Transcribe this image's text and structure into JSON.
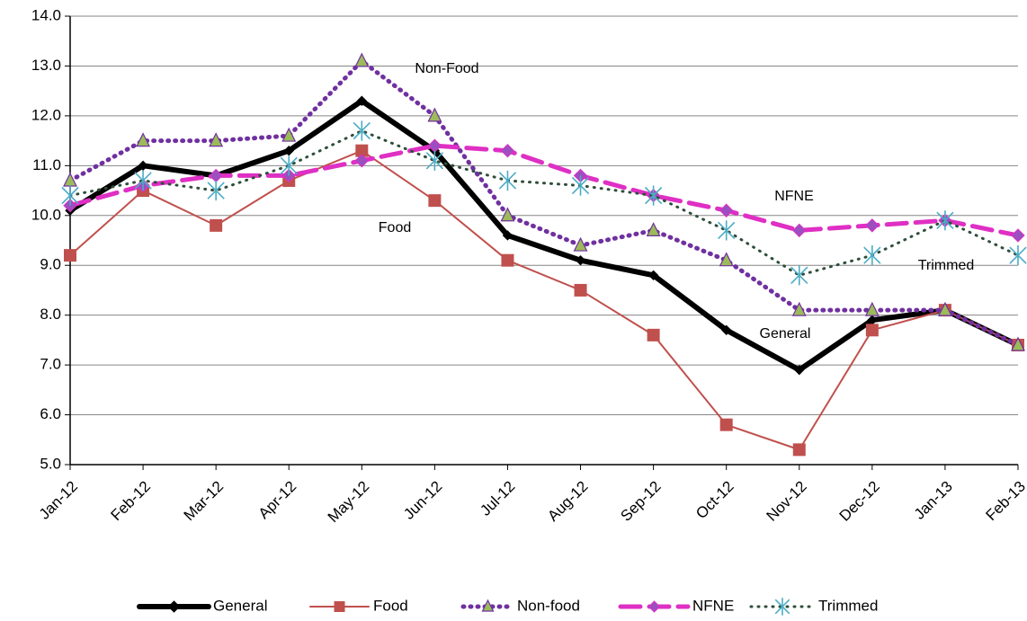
{
  "chart_data": {
    "type": "line",
    "categories": [
      "Jan-12",
      "Feb-12",
      "Mar-12",
      "Apr-12",
      "May-12",
      "Jun-12",
      "Jul-12",
      "Aug-12",
      "Sep-12",
      "Oct-12",
      "Nov-12",
      "Dec-12",
      "Jan-13",
      "Feb-13"
    ],
    "series": [
      {
        "name": "General",
        "color": "#000000",
        "marker": "diamond",
        "marker_color": "#000000",
        "dash": "solid",
        "width": 6,
        "values": [
          10.1,
          11.0,
          10.8,
          11.3,
          12.3,
          11.3,
          9.6,
          9.1,
          8.8,
          7.7,
          6.9,
          7.9,
          8.1,
          7.4
        ]
      },
      {
        "name": "Food",
        "color": "#c0504d",
        "marker": "square",
        "marker_color": "#c0504d",
        "dash": "solid",
        "width": 2,
        "values": [
          9.2,
          10.5,
          9.8,
          10.7,
          11.3,
          10.3,
          9.1,
          8.5,
          7.6,
          5.8,
          5.3,
          7.7,
          8.1,
          7.4
        ]
      },
      {
        "name": "Non-food",
        "color": "#7030a0",
        "marker": "triangle",
        "marker_color": "#9bbb59",
        "dash": "dotted",
        "width": 5,
        "values": [
          10.7,
          11.5,
          11.5,
          11.6,
          13.1,
          12.0,
          10.0,
          9.4,
          9.7,
          9.1,
          8.1,
          8.1,
          8.1,
          7.4
        ]
      },
      {
        "name": "NFNE",
        "color": "#df2fc4",
        "marker": "diamond",
        "marker_color": "#9b4fc0",
        "dash": "dashed",
        "width": 5,
        "values": [
          10.2,
          10.6,
          10.8,
          10.8,
          11.1,
          11.4,
          11.3,
          10.8,
          10.4,
          10.1,
          9.7,
          9.8,
          9.9,
          9.6
        ]
      },
      {
        "name": "Trimmed",
        "color": "#2e4e3a",
        "marker": "asterisk",
        "marker_color": "#4bacc6",
        "dash": "dotted",
        "width": 3,
        "values": [
          10.4,
          10.7,
          10.5,
          11.0,
          11.7,
          11.1,
          10.7,
          10.6,
          10.4,
          9.7,
          8.8,
          9.2,
          9.9,
          9.2
        ]
      }
    ],
    "annotations": [
      "Non-Food",
      "Food",
      "NFNE",
      "Trimmed",
      "General"
    ],
    "ylim": [
      5,
      14
    ],
    "yticks": [
      {
        "value": 5,
        "label": "5.0"
      },
      {
        "value": 6,
        "label": "6.0"
      },
      {
        "value": 7,
        "label": "7.0"
      },
      {
        "value": 8,
        "label": "8.0"
      },
      {
        "value": 9,
        "label": "9.0"
      },
      {
        "value": 10,
        "label": "10.0"
      },
      {
        "value": 11,
        "label": "11.0"
      },
      {
        "value": 12,
        "label": "12.0"
      },
      {
        "value": 13,
        "label": "13.0"
      },
      {
        "value": 14,
        "label": "14.0"
      }
    ],
    "grid": true,
    "legend": "bottom"
  }
}
